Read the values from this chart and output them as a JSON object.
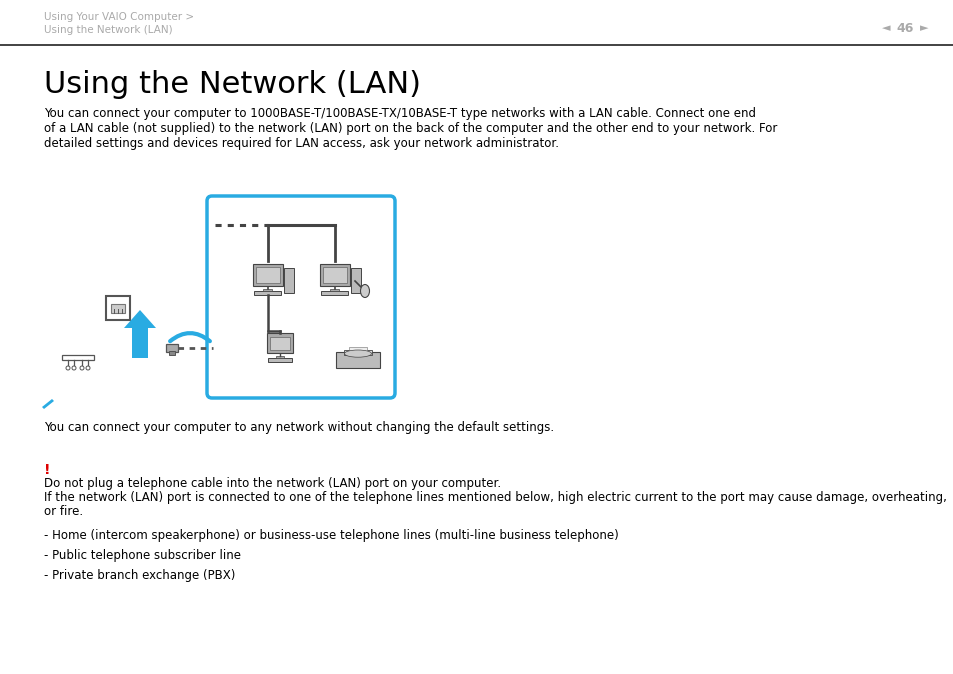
{
  "bg_color": "#ffffff",
  "header_text1": "Using Your VAIO Computer >",
  "header_text2": "Using the Network (LAN)",
  "page_number": "46",
  "title": "Using the Network (LAN)",
  "body_line1": "You can connect your computer to 1000BASE-T/100BASE-TX/10BASE-T type networks with a LAN cable. Connect one end",
  "body_line2": "of a LAN cable (not supplied) to the network (LAN) port on the back of the computer and the other end to your network. For",
  "body_line3": "detailed settings and devices required for LAN access, ask your network administrator.",
  "note_text": "You can connect your computer to any network without changing the default settings.",
  "warning_text1": "Do not plug a telephone cable into the network (LAN) port on your computer.",
  "warning_text2": "If the network (LAN) port is connected to one of the telephone lines mentioned below, high electric current to the port may cause damage, overheating,",
  "warning_text3": "or fire.",
  "bullet1": "- Home (intercom speakerphone) or business-use telephone lines (multi-line business telephone)",
  "bullet2": "- Public telephone subscriber line",
  "bullet3": "- Private branch exchange (PBX)",
  "cyan_color": "#29abe2",
  "header_gray": "#aaaaaa",
  "red_color": "#dd0000",
  "text_color": "#000000",
  "diagram_gray": "#999999",
  "diagram_dark": "#444444",
  "header_line_color": "#222222",
  "title_fontsize": 22,
  "body_fontsize": 8.5,
  "header_fontsize": 7.5
}
